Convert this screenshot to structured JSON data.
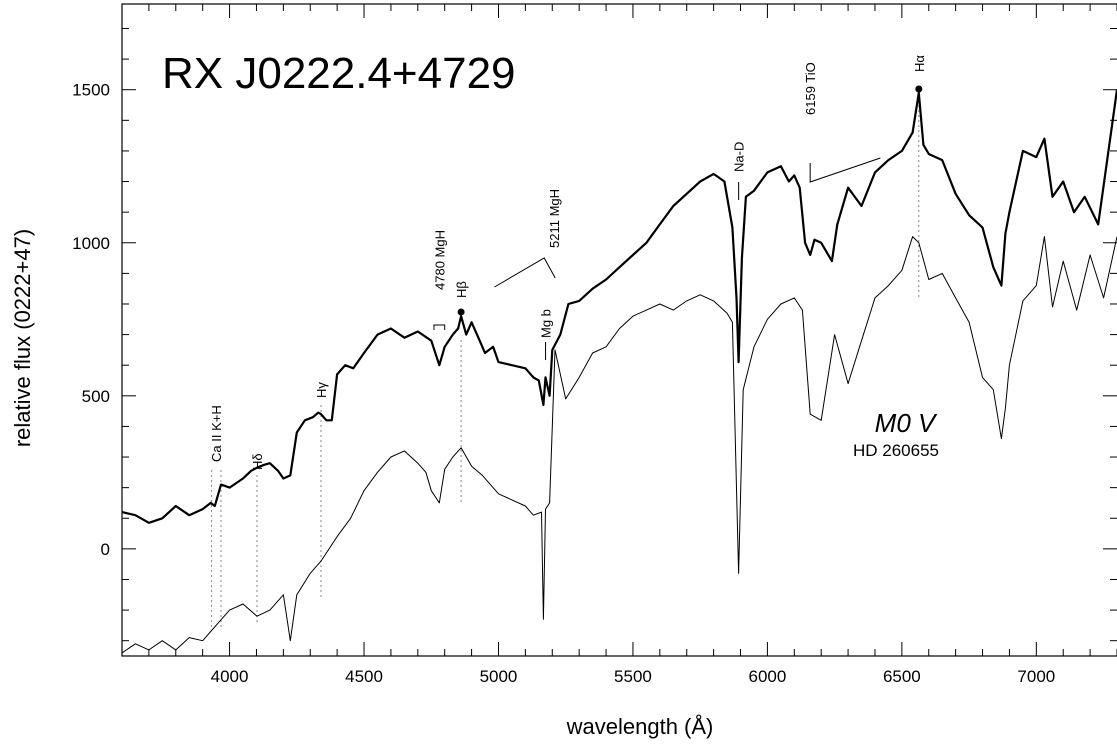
{
  "chart_data": {
    "type": "line",
    "title": "RX J0222.4+4729",
    "xlabel": "wavelength (Å)",
    "ylabel": "relative flux (0222+47)",
    "xlim": [
      3600,
      7300
    ],
    "ylim": [
      -350,
      1780
    ],
    "x_ticks": [
      "4000",
      "4500",
      "5000",
      "5500",
      "6000",
      "6500",
      "7000"
    ],
    "y_ticks": [
      "0",
      "500",
      "1000",
      "1500"
    ],
    "comparison_label": {
      "spectral_type": "M0  V",
      "star": "HD 260655"
    },
    "line_markers": [
      {
        "label": "Ca II K+H",
        "x": 3950
      },
      {
        "label": "Hδ",
        "x": 4102
      },
      {
        "label": "Hγ",
        "x": 4340
      },
      {
        "label": "4780  MgH",
        "x": 4780
      },
      {
        "label": "Hβ",
        "x": 4861
      },
      {
        "label": "5211  MgH",
        "x": 5211
      },
      {
        "label": "Mg b",
        "x": 5175
      },
      {
        "label": "Na-D",
        "x": 5893
      },
      {
        "label": "6159  TiO",
        "x": 6159
      },
      {
        "label": "Hα",
        "x": 6563
      }
    ],
    "series": [
      {
        "x": [
          3600,
          3650,
          3700,
          3750,
          3800,
          3850,
          3900,
          3930,
          3945,
          3968,
          4000,
          4050,
          4080,
          4102,
          4130,
          4150,
          4180,
          4200,
          4226,
          4250,
          4280,
          4310,
          4330,
          4340,
          4360,
          4380,
          4400,
          4430,
          4460,
          4500,
          4550,
          4600,
          4650,
          4700,
          4750,
          4780,
          4800,
          4830,
          4850,
          4861,
          4880,
          4900,
          4930,
          4950,
          4980,
          5000,
          5050,
          5100,
          5130,
          5150,
          5167,
          5175,
          5190,
          5200,
          5230,
          5260,
          5300,
          5350,
          5400,
          5450,
          5500,
          5550,
          5600,
          5650,
          5700,
          5750,
          5800,
          5840,
          5870,
          5885,
          5893,
          5905,
          5920,
          5950,
          6000,
          6050,
          6080,
          6100,
          6120,
          6140,
          6159,
          6175,
          6200,
          6240,
          6260,
          6300,
          6350,
          6400,
          6450,
          6500,
          6540,
          6563,
          6580,
          6600,
          6650,
          6700,
          6750,
          6800,
          6840,
          6870,
          6885,
          6900,
          6950,
          7000,
          7030,
          7060,
          7100,
          7140,
          7180,
          7230,
          7300
        ],
        "values": [
          120,
          110,
          85,
          100,
          140,
          110,
          130,
          150,
          140,
          210,
          200,
          230,
          255,
          265,
          275,
          280,
          255,
          230,
          240,
          380,
          420,
          430,
          445,
          440,
          420,
          420,
          570,
          600,
          590,
          640,
          700,
          720,
          690,
          710,
          680,
          600,
          660,
          700,
          720,
          760,
          700,
          740,
          680,
          640,
          660,
          610,
          600,
          590,
          560,
          550,
          470,
          560,
          500,
          650,
          700,
          800,
          810,
          850,
          880,
          920,
          960,
          1000,
          1060,
          1120,
          1160,
          1200,
          1225,
          1200,
          1050,
          820,
          610,
          950,
          1150,
          1170,
          1230,
          1250,
          1200,
          1220,
          1180,
          1000,
          960,
          1010,
          1000,
          940,
          1060,
          1180,
          1120,
          1230,
          1270,
          1300,
          1360,
          1490,
          1320,
          1290,
          1270,
          1160,
          1090,
          1050,
          920,
          860,
          1030,
          1100,
          1300,
          1280,
          1340,
          1150,
          1200,
          1100,
          1150,
          1060,
          1500
        ]
      },
      {
        "x": [
          3600,
          3650,
          3700,
          3750,
          3800,
          3850,
          3900,
          3930,
          3960,
          4000,
          4050,
          4102,
          4150,
          4200,
          4226,
          4250,
          4300,
          4340,
          4400,
          4450,
          4500,
          4550,
          4600,
          4650,
          4700,
          4730,
          4750,
          4780,
          4800,
          4830,
          4861,
          4900,
          4940,
          5000,
          5050,
          5100,
          5130,
          5160,
          5167,
          5175,
          5190,
          5210,
          5250,
          5300,
          5350,
          5400,
          5450,
          5500,
          5550,
          5600,
          5650,
          5700,
          5750,
          5800,
          5850,
          5870,
          5893,
          5910,
          5950,
          6000,
          6050,
          6100,
          6130,
          6159,
          6200,
          6250,
          6300,
          6350,
          6400,
          6450,
          6500,
          6540,
          6563,
          6600,
          6650,
          6700,
          6750,
          6800,
          6840,
          6870,
          6885,
          6900,
          6950,
          7000,
          7030,
          7060,
          7100,
          7150,
          7200,
          7250,
          7300
        ],
        "values": [
          -340,
          -310,
          -330,
          -300,
          -330,
          -290,
          -300,
          -270,
          -240,
          -200,
          -180,
          -220,
          -200,
          -150,
          -300,
          -150,
          -80,
          -40,
          40,
          100,
          190,
          250,
          300,
          320,
          280,
          250,
          190,
          150,
          260,
          300,
          330,
          270,
          240,
          180,
          160,
          140,
          110,
          120,
          -230,
          130,
          150,
          650,
          490,
          560,
          640,
          660,
          720,
          760,
          780,
          800,
          780,
          810,
          830,
          810,
          770,
          740,
          -80,
          520,
          660,
          750,
          800,
          820,
          780,
          440,
          420,
          700,
          540,
          680,
          820,
          860,
          910,
          1020,
          1000,
          880,
          900,
          820,
          740,
          560,
          520,
          360,
          460,
          600,
          810,
          860,
          1020,
          790,
          940,
          780,
          960,
          820,
          1020
        ]
      }
    ]
  }
}
